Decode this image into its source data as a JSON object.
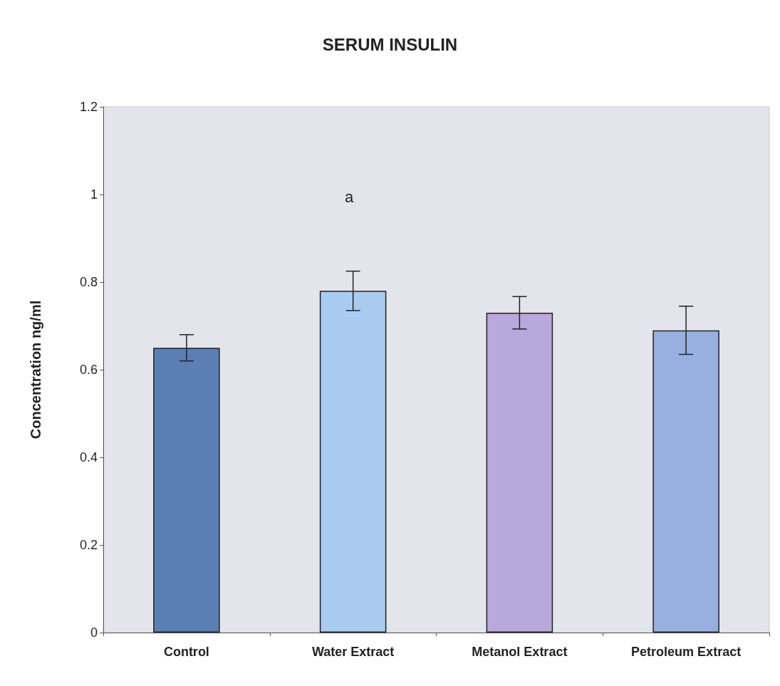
{
  "chart_data": {
    "type": "bar",
    "title": "SERUM INSULIN",
    "ylabel": "Concentration ng/ml",
    "categories": [
      "Control",
      "Water Extract",
      "Metanol Extract",
      "Petroleum Extract"
    ],
    "values": [
      0.65,
      0.78,
      0.73,
      0.69
    ],
    "errors": [
      0.03,
      0.045,
      0.037,
      0.055
    ],
    "colors": [
      "#5b7fb5",
      "#a9cbf0",
      "#b9a8dc",
      "#97b0e0"
    ],
    "ylim": [
      0,
      1.2
    ],
    "yticks": [
      0,
      0.2,
      0.4,
      0.6,
      0.8,
      1,
      1.2
    ],
    "grid": false,
    "annotations": [
      "a"
    ]
  }
}
